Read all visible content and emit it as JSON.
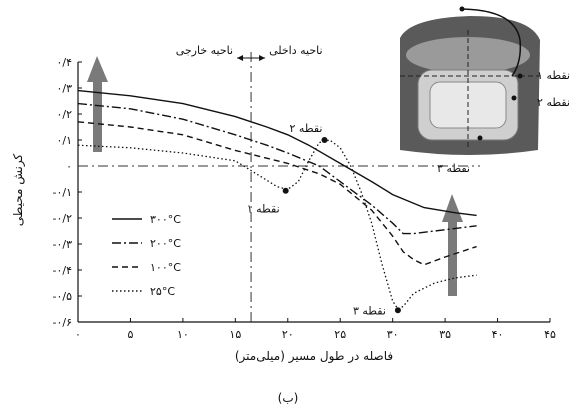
{
  "chart_data": {
    "type": "line",
    "title": "",
    "caption": "(ب)",
    "xlabel": "فاصله در طول مسیر (میلی‌متر)",
    "ylabel": "کرنش محیطی",
    "xlim": [
      0,
      45
    ],
    "ylim": [
      -0.6,
      0.4
    ],
    "x_ticks": [
      0,
      5,
      10,
      15,
      20,
      25,
      30,
      35,
      40,
      45
    ],
    "x_tick_labels": [
      "۰",
      "۵",
      "۱۰",
      "۱۵",
      "۲۰",
      "۲۵",
      "۳۰",
      "۳۵",
      "۴۰",
      "۴۵"
    ],
    "y_ticks": [
      0.4,
      0.3,
      0.2,
      0.1,
      0,
      -0.1,
      -0.2,
      -0.3,
      -0.4,
      -0.5,
      -0.6
    ],
    "y_tick_labels": [
      "۰/۴",
      "۰/۳",
      "۰/۲",
      "۰/۱",
      "۰",
      "-۰/۱",
      "-۰/۲",
      "-۰/۳",
      "-۰/۴",
      "-۰/۵",
      "-۰/۶"
    ],
    "grid": false,
    "legend_position": "bottom-left",
    "series": [
      {
        "name": "۳۰۰°C",
        "style": "solid",
        "x": [
          0,
          5,
          10,
          15,
          18,
          20,
          22,
          25,
          28,
          30,
          33,
          36,
          38
        ],
        "y": [
          0.29,
          0.27,
          0.24,
          0.19,
          0.15,
          0.12,
          0.08,
          0.01,
          -0.06,
          -0.11,
          -0.16,
          -0.18,
          -0.19
        ]
      },
      {
        "name": "۲۰۰°C",
        "style": "dashdot",
        "x": [
          0,
          5,
          10,
          15,
          18,
          20,
          23,
          25,
          28,
          30,
          31,
          32,
          34,
          36,
          38
        ],
        "y": [
          0.24,
          0.22,
          0.18,
          0.12,
          0.08,
          0.05,
          0.0,
          -0.06,
          -0.15,
          -0.22,
          -0.26,
          -0.26,
          -0.25,
          -0.24,
          -0.23
        ]
      },
      {
        "name": "۱۰۰°C",
        "style": "dashed",
        "x": [
          0,
          5,
          10,
          15,
          18,
          20,
          23,
          25,
          28,
          30,
          31,
          32,
          33,
          35,
          38
        ],
        "y": [
          0.17,
          0.15,
          0.12,
          0.06,
          0.03,
          0.01,
          -0.03,
          -0.07,
          -0.17,
          -0.27,
          -0.33,
          -0.36,
          -0.38,
          -0.35,
          -0.31
        ]
      },
      {
        "name": "۲۵°C",
        "style": "dotted",
        "x": [
          0,
          5,
          10,
          15,
          17,
          19,
          20,
          21,
          22,
          23,
          24,
          25,
          26,
          27,
          28,
          29,
          30,
          30.5,
          31,
          32,
          34,
          36,
          38
        ],
        "y": [
          0.08,
          0.07,
          0.05,
          0.02,
          -0.03,
          -0.08,
          -0.09,
          -0.06,
          0.02,
          0.09,
          0.1,
          0.07,
          0.0,
          -0.1,
          -0.22,
          -0.38,
          -0.52,
          -0.55,
          -0.54,
          -0.49,
          -0.45,
          -0.43,
          -0.42
        ]
      }
    ],
    "reference_lines": {
      "vertical_x": 16.5,
      "horizontal_y": 0
    },
    "region_labels": {
      "outer": "ناحیه خارجی",
      "inner": "ناحیه داخلی"
    },
    "annotations": [
      {
        "text": "نقطه ۱",
        "x": 19.8,
        "y": -0.095
      },
      {
        "text": "نقطه ۲",
        "x": 23.5,
        "y": 0.1
      },
      {
        "text": "نقطه ۳",
        "x": 30.5,
        "y": -0.555
      }
    ],
    "inset_labels": [
      "نقطه ۱",
      "نقطه ۲",
      "نقطه ۳"
    ]
  }
}
